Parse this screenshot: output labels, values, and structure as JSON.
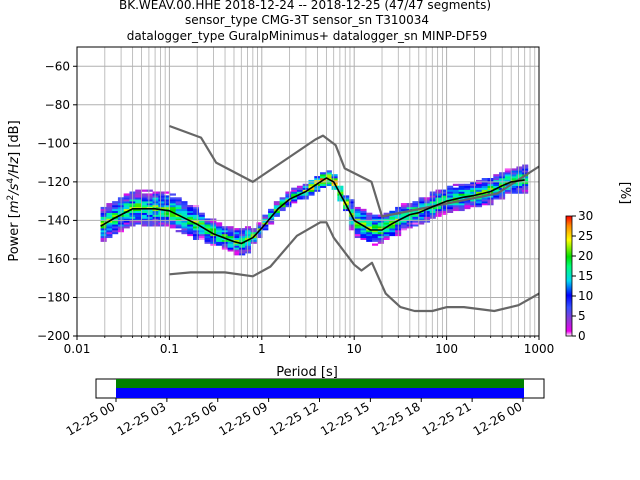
{
  "title_lines": [
    "BK.WEAV.00.HHE   2018-12-24 -- 2018-12-25  (47/47 segments)",
    "sensor_type CMG-3T sensor_sn T310034",
    "datalogger_type GuralpMinimus+ datalogger_sn MINP-DF59"
  ],
  "chart_data": [
    {
      "type": "heatmap",
      "title": "BK.WEAV.00.HHE   2018-12-24 -- 2018-12-25  (47/47 segments)",
      "xlabel": "Period [s]",
      "ylabel_parts": [
        "Power [",
        "m",
        "2",
        "/s",
        "4",
        "/Hz",
        "] [dB]"
      ],
      "x_scale": "log",
      "xlim": [
        0.01,
        1000
      ],
      "ylim": [
        -200,
        -50
      ],
      "x_ticks": [
        {
          "value": 0.01,
          "label": "0.01"
        },
        {
          "value": 0.1,
          "label": "0.1"
        },
        {
          "value": 1,
          "label": "1"
        },
        {
          "value": 10,
          "label": "10"
        },
        {
          "value": 100,
          "label": "100"
        },
        {
          "value": 1000,
          "label": "1000"
        }
      ],
      "y_ticks": [
        -200,
        -180,
        -160,
        -140,
        -120,
        -100,
        -80,
        -60
      ],
      "grid": true,
      "colorbar": {
        "label": "[%]",
        "ticks": [
          0,
          5,
          10,
          15,
          20,
          25,
          30
        ],
        "range": [
          0,
          30
        ],
        "colormap": "pqlx"
      },
      "mean_curve": {
        "name": "mean",
        "color": "#000000",
        "x": [
          0.018,
          0.025,
          0.04,
          0.07,
          0.1,
          0.2,
          0.3,
          0.5,
          0.6,
          0.8,
          1,
          1.5,
          2,
          3,
          4,
          5,
          6,
          8,
          10,
          15,
          20,
          25,
          30,
          40,
          50,
          70,
          100,
          150,
          200,
          300,
          400,
          500,
          700
        ],
        "y": [
          -143,
          -139,
          -134,
          -134,
          -135,
          -142,
          -147,
          -151,
          -152,
          -149,
          -144,
          -134,
          -129,
          -125,
          -121,
          -118,
          -120,
          -131,
          -140,
          -145,
          -145,
          -142,
          -140,
          -137,
          -136,
          -133,
          -130,
          -128,
          -127,
          -125,
          -122,
          -120,
          -119
        ]
      },
      "noise_models": [
        {
          "name": "high",
          "color": "#666666",
          "x": [
            0.1,
            0.22,
            0.32,
            0.8,
            3.8,
            4.6,
            6.3,
            7.9,
            15.4,
            20,
            354.8,
            1000
          ],
          "y": [
            -91,
            -97,
            -110,
            -120,
            -98,
            -96,
            -101,
            -113,
            -120,
            -138,
            -126,
            -112
          ]
        },
        {
          "name": "low",
          "color": "#666666",
          "x": [
            0.1,
            0.17,
            0.4,
            0.8,
            1.24,
            2.4,
            4.3,
            5,
            6,
            10,
            12,
            15.6,
            21.9,
            31.6,
            45,
            70,
            101,
            154,
            328,
            600,
            1000
          ],
          "y": [
            -168,
            -167,
            -167,
            -169,
            -164,
            -148,
            -141,
            -141,
            -149,
            -163,
            -166,
            -162,
            -178,
            -185,
            -187,
            -187,
            -185,
            -185,
            -187,
            -184,
            -178
          ]
        }
      ]
    },
    {
      "type": "timeline",
      "ticks": [
        "12-25 00",
        "12-25 03",
        "12-25 06",
        "12-25 09",
        "12-25 12",
        "12-25 15",
        "12-25 18",
        "12-25 21",
        "12-26 00"
      ],
      "data_bar_color": "#008000",
      "used_bar_color": "#0000ff"
    }
  ]
}
